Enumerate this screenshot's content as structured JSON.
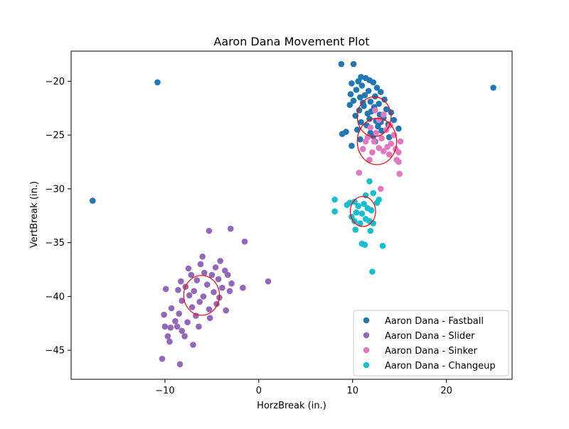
{
  "chart_data": {
    "type": "scatter",
    "title": "Aaron Dana Movement Plot",
    "xlabel": "HorzBreak (in.)",
    "ylabel": "VertBreak (in.)",
    "xlim": [
      -20,
      27
    ],
    "ylim": [
      -47.7,
      -17.2
    ],
    "xticks": [
      -10,
      0,
      10,
      20
    ],
    "yticks": [
      -20,
      -25,
      -30,
      -35,
      -40,
      -45
    ],
    "grid": false,
    "legend_position": "lower-right",
    "series": [
      {
        "name": "Aaron Dana - Fastball",
        "color": "#1f77b4",
        "points": [
          [
            -17.7,
            -31.1
          ],
          [
            -10.8,
            -20.1
          ],
          [
            25.0,
            -20.6
          ],
          [
            8.8,
            -18.4
          ],
          [
            10.1,
            -18.4
          ],
          [
            10.9,
            -19.6
          ],
          [
            11.4,
            -19.7
          ],
          [
            11.8,
            -19.9
          ],
          [
            10.6,
            -20.0
          ],
          [
            12.2,
            -20.1
          ],
          [
            9.9,
            -20.2
          ],
          [
            11.0,
            -20.4
          ],
          [
            12.6,
            -20.6
          ],
          [
            10.4,
            -20.8
          ],
          [
            11.7,
            -20.9
          ],
          [
            13.0,
            -21.0
          ],
          [
            9.8,
            -21.2
          ],
          [
            11.3,
            -21.3
          ],
          [
            12.4,
            -21.4
          ],
          [
            10.8,
            -21.5
          ],
          [
            13.4,
            -21.7
          ],
          [
            10.1,
            -21.8
          ],
          [
            11.9,
            -21.9
          ],
          [
            12.8,
            -22.1
          ],
          [
            9.7,
            -22.2
          ],
          [
            11.2,
            -22.3
          ],
          [
            12.3,
            -22.4
          ],
          [
            13.6,
            -22.6
          ],
          [
            10.7,
            -22.7
          ],
          [
            14.1,
            -22.9
          ],
          [
            11.6,
            -23.0
          ],
          [
            12.9,
            -23.1
          ],
          [
            10.3,
            -23.2
          ],
          [
            13.3,
            -23.4
          ],
          [
            11.8,
            -23.5
          ],
          [
            14.4,
            -23.6
          ],
          [
            12.5,
            -23.7
          ],
          [
            10.9,
            -23.8
          ],
          [
            13.8,
            -24.0
          ],
          [
            11.5,
            -24.1
          ],
          [
            12.7,
            -24.2
          ],
          [
            14.9,
            -24.4
          ],
          [
            10.5,
            -24.5
          ],
          [
            13.1,
            -24.6
          ],
          [
            9.3,
            -24.7
          ],
          [
            11.9,
            -24.8
          ],
          [
            8.9,
            -24.9
          ],
          [
            12.2,
            -25.1
          ],
          [
            13.9,
            -25.2
          ],
          [
            10.8,
            -25.4
          ],
          [
            12.4,
            -25.6
          ],
          [
            9.9,
            -26.0
          ],
          [
            11.1,
            -22.0
          ],
          [
            12.0,
            -22.8
          ],
          [
            13.0,
            -23.8
          ]
        ]
      },
      {
        "name": "Aaron Dana - Slider",
        "color": "#9467bd",
        "points": [
          [
            -5.3,
            -33.9
          ],
          [
            -3.0,
            -33.7
          ],
          [
            -1.5,
            -34.9
          ],
          [
            -6.0,
            -36.3
          ],
          [
            -4.1,
            -36.7
          ],
          [
            -6.2,
            -37.0
          ],
          [
            -7.5,
            -37.4
          ],
          [
            -4.6,
            -37.3
          ],
          [
            -3.6,
            -37.6
          ],
          [
            -7.2,
            -38.0
          ],
          [
            -5.8,
            -37.8
          ],
          [
            -5.0,
            -38.0
          ],
          [
            -3.3,
            -38.0
          ],
          [
            -8.3,
            -38.6
          ],
          [
            -6.6,
            -38.5
          ],
          [
            -4.3,
            -38.4
          ],
          [
            -2.9,
            -38.8
          ],
          [
            -7.8,
            -39.1
          ],
          [
            -5.5,
            -38.9
          ],
          [
            -3.9,
            -39.2
          ],
          [
            1.0,
            -38.6
          ],
          [
            -9.9,
            -39.3
          ],
          [
            -8.6,
            -39.4
          ],
          [
            -6.9,
            -39.5
          ],
          [
            -4.8,
            -39.6
          ],
          [
            -3.1,
            -39.5
          ],
          [
            -1.7,
            -39.2
          ],
          [
            -7.4,
            -39.9
          ],
          [
            -5.9,
            -40.0
          ],
          [
            -4.2,
            -40.1
          ],
          [
            -8.2,
            -40.4
          ],
          [
            -6.3,
            -40.5
          ],
          [
            -4.5,
            -40.7
          ],
          [
            -9.3,
            -41.1
          ],
          [
            -7.1,
            -41.0
          ],
          [
            -5.3,
            -41.2
          ],
          [
            -3.5,
            -41.3
          ],
          [
            -10.1,
            -41.7
          ],
          [
            -8.5,
            -41.6
          ],
          [
            -6.7,
            -41.8
          ],
          [
            -5.2,
            -42.0
          ],
          [
            -8.9,
            -42.3
          ],
          [
            -7.6,
            -42.4
          ],
          [
            -10.0,
            -42.8
          ],
          [
            -9.4,
            -42.9
          ],
          [
            -8.7,
            -42.8
          ],
          [
            -6.4,
            -42.8
          ],
          [
            -8.2,
            -43.2
          ],
          [
            -9.7,
            -43.7
          ],
          [
            -7.9,
            -43.7
          ],
          [
            -9.5,
            -44.2
          ],
          [
            -7.0,
            -44.5
          ],
          [
            -10.3,
            -45.8
          ],
          [
            -8.4,
            -46.3
          ]
        ]
      },
      {
        "name": "Aaron Dana - Sinker",
        "color": "#e377c2",
        "points": [
          [
            12.4,
            -22.7
          ],
          [
            13.3,
            -23.1
          ],
          [
            12.8,
            -23.6
          ],
          [
            14.0,
            -24.1
          ],
          [
            11.9,
            -24.3
          ],
          [
            13.6,
            -24.5
          ],
          [
            12.5,
            -24.8
          ],
          [
            14.4,
            -25.0
          ],
          [
            11.6,
            -25.2
          ],
          [
            13.1,
            -25.3
          ],
          [
            15.1,
            -25.6
          ],
          [
            12.3,
            -25.6
          ],
          [
            14.1,
            -25.8
          ],
          [
            11.4,
            -25.6
          ],
          [
            13.7,
            -26.1
          ],
          [
            12.8,
            -26.2
          ],
          [
            14.6,
            -26.3
          ],
          [
            11.1,
            -26.3
          ],
          [
            13.3,
            -26.5
          ],
          [
            12.1,
            -26.6
          ],
          [
            14.9,
            -26.6
          ],
          [
            13.9,
            -26.8
          ],
          [
            11.8,
            -27.3
          ],
          [
            14.7,
            -27.3
          ],
          [
            14.9,
            -27.5
          ],
          [
            15.0,
            -28.6
          ],
          [
            10.7,
            -28.5
          ],
          [
            13.0,
            -30.0
          ]
        ]
      },
      {
        "name": "Aaron Dana - Changeup",
        "color": "#17becf",
        "points": [
          [
            11.8,
            -29.3
          ],
          [
            12.2,
            -30.4
          ],
          [
            11.4,
            -30.6
          ],
          [
            8.1,
            -31.0
          ],
          [
            12.8,
            -31.0
          ],
          [
            10.2,
            -31.2
          ],
          [
            9.7,
            -31.3
          ],
          [
            11.2,
            -31.4
          ],
          [
            12.6,
            -31.3
          ],
          [
            9.4,
            -31.5
          ],
          [
            10.6,
            -31.6
          ],
          [
            11.6,
            -31.8
          ],
          [
            8.1,
            -32.1
          ],
          [
            12.0,
            -32.0
          ],
          [
            10.4,
            -32.2
          ],
          [
            11.0,
            -32.3
          ],
          [
            9.9,
            -32.6
          ],
          [
            11.4,
            -32.8
          ],
          [
            10.2,
            -33.0
          ],
          [
            11.8,
            -33.0
          ],
          [
            10.8,
            -33.2
          ],
          [
            12.2,
            -33.2
          ],
          [
            10.3,
            -33.8
          ],
          [
            11.9,
            -33.9
          ],
          [
            11.0,
            -35.1
          ],
          [
            11.3,
            -35.2
          ],
          [
            13.2,
            -35.3
          ],
          [
            12.1,
            -37.7
          ]
        ]
      }
    ],
    "ellipses": [
      {
        "series": "Aaron Dana - Fastball",
        "cx": 12.3,
        "cy": -23.3,
        "rx": 1.8,
        "ry": 1.85,
        "color": "#ff0000"
      },
      {
        "series": "Aaron Dana - Sinker",
        "cx": 12.6,
        "cy": -25.6,
        "rx": 2.1,
        "ry": 2.15,
        "color": "#ff0000"
      },
      {
        "series": "Aaron Dana - Changeup",
        "cx": 11.1,
        "cy": -32.1,
        "rx": 1.35,
        "ry": 1.4,
        "color": "#ff0000"
      },
      {
        "series": "Aaron Dana - Slider",
        "cx": -6.1,
        "cy": -39.9,
        "rx": 1.9,
        "ry": 1.85,
        "color": "#ff0000"
      }
    ]
  }
}
